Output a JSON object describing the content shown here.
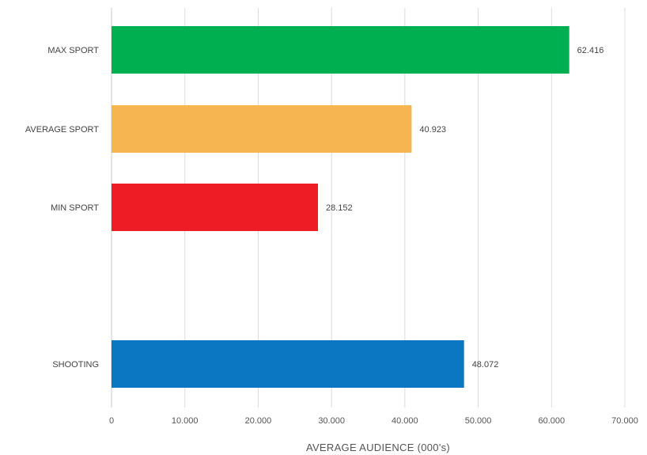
{
  "chart_data": {
    "type": "bar",
    "orientation": "horizontal",
    "categories": [
      "MAX SPORT",
      "AVERAGE SPORT",
      "MIN SPORT",
      "",
      "SHOOTING"
    ],
    "values": [
      62.416,
      40.923,
      28.152,
      null,
      48.072
    ],
    "value_labels": [
      "62.416",
      "40.923",
      "28.152",
      "",
      "48.072"
    ],
    "bar_colors": [
      "#00b050",
      "#f7b552",
      "#ee1c25",
      "",
      "#0b77c2"
    ],
    "xlabel": "AVERAGE AUDIENCE (000's)",
    "ylabel": "",
    "title": "",
    "xlim": [
      0,
      70
    ],
    "x_ticks": [
      0,
      10,
      20,
      30,
      40,
      50,
      60,
      70
    ],
    "x_tick_labels": [
      "0",
      "10.000",
      "20.000",
      "30.000",
      "40.000",
      "50.000",
      "60.000",
      "70.000"
    ],
    "grid": true,
    "legend": "none"
  }
}
